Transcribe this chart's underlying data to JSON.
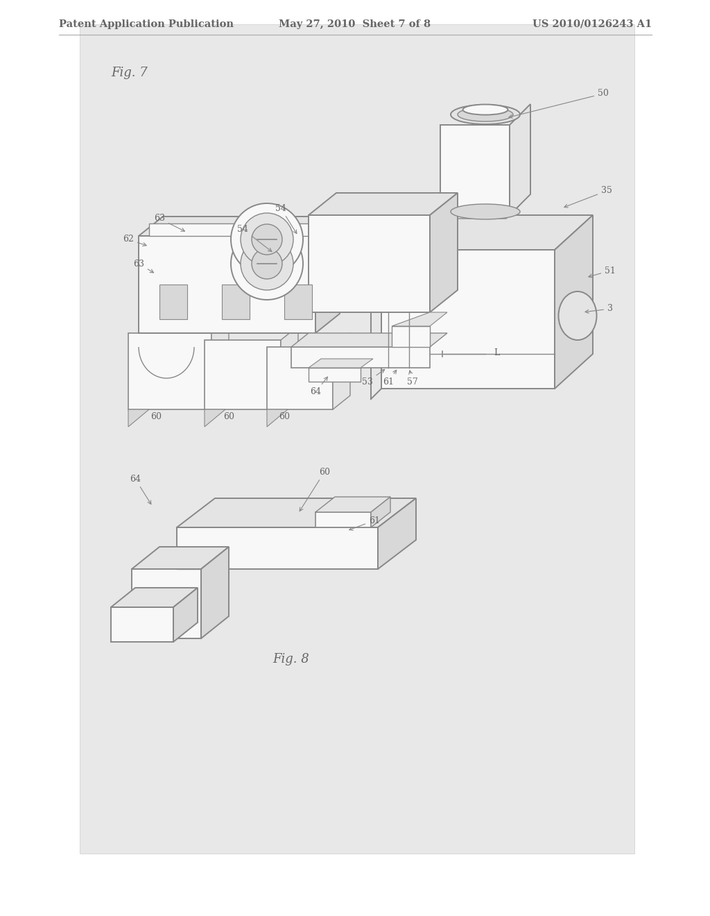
{
  "background_color": "#ffffff",
  "page_bg": "#e8e8e8",
  "border_color": "#cccccc",
  "header_text_left": "Patent Application Publication",
  "header_text_center": "May 27, 2010  Sheet 7 of 8",
  "header_text_right": "US 2010/0126243 A1",
  "header_color": "#666666",
  "fig7_label": "Fig. 7",
  "fig8_label": "Fig. 8",
  "line_color": "#888888",
  "fill_light": "#f0f0f0",
  "fill_mid": "#e4e4e4",
  "fill_dark": "#d8d8d8",
  "label_color": "#666666",
  "label_fontsize": 9
}
